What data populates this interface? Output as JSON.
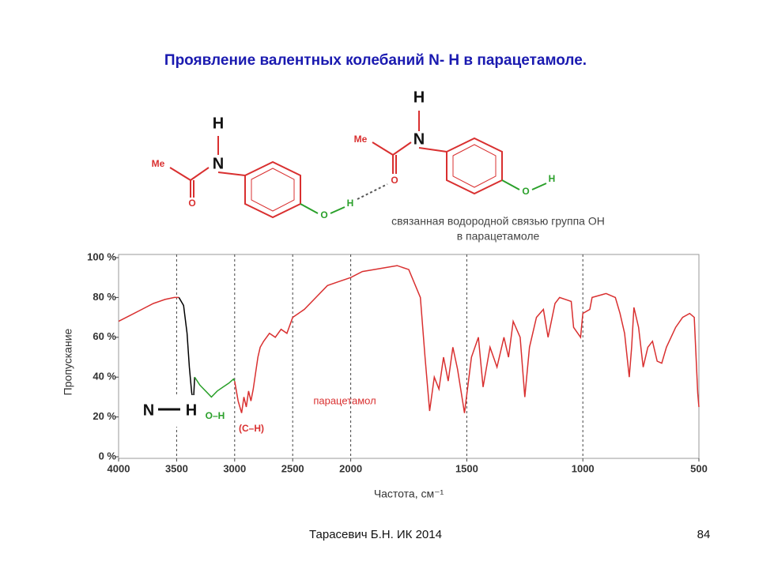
{
  "slide": {
    "title": "Проявление валентных колебаний N- H в парацетамоле.",
    "footer_author": "Тарасевич Б.Н.  ИК 2014",
    "page": "84"
  },
  "molecule": {
    "me1": "Me",
    "n1": "N",
    "h1": "H",
    "o1": "O",
    "o2": "O",
    "h2": "H",
    "me2": "Me",
    "n2": "N",
    "h3": "H",
    "o3": "O",
    "o4": "O",
    "h4": "H",
    "caption1": "связанная водородной связью группа ОН",
    "caption2": "в парацетамоле"
  },
  "chart_data": {
    "type": "line",
    "xlabel": "Частота, см⁻¹",
    "ylabel": "Пропускание",
    "xlim": [
      4000,
      500
    ],
    "x_scale_change_at": 2000,
    "xticks": [
      4000,
      3500,
      3000,
      2500,
      2000,
      1500,
      1000,
      500
    ],
    "ylim": [
      0,
      100
    ],
    "yticks": [
      {
        "value": 0,
        "label": "0 %"
      },
      {
        "value": 20,
        "label": "20 %"
      },
      {
        "value": 40,
        "label": "40 %"
      },
      {
        "value": 60,
        "label": "60 %"
      },
      {
        "value": 80,
        "label": "80 %"
      },
      {
        "value": 100,
        "label": "100 %"
      }
    ],
    "grid": true,
    "annotations": [
      "N",
      "H",
      "O–H",
      "(C–H)",
      "парацетамол"
    ],
    "series": [
      {
        "color": "#d93030",
        "x": [
          4000,
          3900,
          3800,
          3700,
          3600,
          3520,
          3480
        ],
        "values": [
          68,
          71,
          74,
          77,
          79,
          80,
          80
        ]
      },
      {
        "color": "#000000",
        "x": [
          3480,
          3440,
          3410,
          3390,
          3370,
          3355,
          3345
        ],
        "values": [
          80,
          76,
          62,
          45,
          32,
          28,
          40
        ]
      },
      {
        "color": "#2aa02a",
        "x": [
          3345,
          3300,
          3250,
          3200,
          3150,
          3100,
          3050,
          3010,
          3000
        ],
        "values": [
          40,
          36,
          33,
          30,
          33,
          35,
          37,
          39,
          38
        ]
      },
      {
        "color": "#d93030",
        "x": [
          3000,
          2970,
          2940,
          2920,
          2900,
          2880,
          2860,
          2840,
          2800,
          2780,
          2750,
          2700,
          2650,
          2600,
          2550,
          2500,
          2450,
          2400,
          2300,
          2200,
          2100,
          2000,
          1950,
          1900,
          1850,
          1800,
          1750,
          1700,
          1680,
          1660,
          1640,
          1620,
          1600,
          1580,
          1560,
          1540,
          1510,
          1480,
          1450,
          1430,
          1400,
          1370,
          1340,
          1320,
          1300,
          1270,
          1250,
          1230,
          1200,
          1170,
          1150,
          1120,
          1100,
          1050,
          1040,
          1010,
          1000,
          970,
          960,
          900,
          860,
          840,
          820,
          800,
          790,
          780,
          760,
          740,
          720,
          700,
          680,
          660,
          640,
          600,
          570,
          540,
          520,
          505,
          500
        ],
        "values": [
          38,
          28,
          22,
          30,
          25,
          33,
          28,
          34,
          50,
          55,
          58,
          62,
          60,
          64,
          62,
          70,
          72,
          74,
          80,
          86,
          88,
          90,
          93,
          94,
          95,
          96,
          94,
          80,
          50,
          23,
          40,
          34,
          50,
          38,
          55,
          44,
          22,
          50,
          60,
          35,
          55,
          45,
          60,
          50,
          68,
          60,
          30,
          55,
          70,
          74,
          60,
          77,
          80,
          78,
          65,
          60,
          72,
          74,
          80,
          82,
          80,
          72,
          62,
          40,
          55,
          75,
          65,
          45,
          55,
          58,
          48,
          47,
          55,
          65,
          70,
          72,
          70,
          32,
          25
        ]
      }
    ]
  }
}
